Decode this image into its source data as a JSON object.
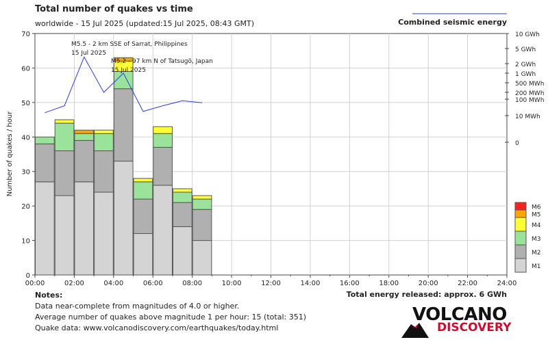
{
  "header": {
    "title": "Total number of quakes vs time",
    "subtitle": "worldwide - 15 Jul 2025 (updated:15 Jul 2025, 08:43 GMT)"
  },
  "legend_energy": "Combined seismic energy",
  "notes": {
    "title": "Notes:",
    "line1": "Data near-complete from magnitudes of 4.0 or higher.",
    "line2": "Average number of quakes above magnitude 1 per hour: 15 (total: 351)",
    "line3": "Quake data: www.volcanodiscovery.com/earthquakes/today.html"
  },
  "total_energy": "Total energy released: approx. 6 GWh",
  "logo": {
    "volcano": "VOLCANO",
    "discovery": "DISCOVERY"
  },
  "colors": {
    "M1": "#d4d4d4",
    "M2": "#b0b0b0",
    "M3": "#9be39b",
    "M4": "#ffff33",
    "M5": "#ffa500",
    "M6": "#ff2020",
    "energy_line": "#2a3ed6"
  },
  "chart_data": {
    "type": "bar",
    "stacked": true,
    "ylabel": "Number of quakes / hour",
    "ylim": [
      0,
      70
    ],
    "yticks": [
      0,
      10,
      20,
      30,
      40,
      50,
      60,
      70
    ],
    "xlim": [
      0,
      24
    ],
    "xticks": [
      "00:00",
      "02:00",
      "04:00",
      "06:00",
      "08:00",
      "10:00",
      "12:00",
      "14:00",
      "16:00",
      "18:00",
      "20:00",
      "22:00",
      "24:00"
    ],
    "grid": true,
    "bin_hours": 1,
    "bins_start": [
      0,
      1,
      2,
      3,
      4,
      5,
      6,
      7,
      8
    ],
    "series": [
      {
        "name": "M1",
        "values": [
          27,
          23,
          27,
          24,
          33,
          12,
          26,
          14,
          10
        ]
      },
      {
        "name": "M2",
        "values": [
          11,
          13,
          12,
          12,
          21,
          10,
          11,
          7,
          9
        ]
      },
      {
        "name": "M3",
        "values": [
          2,
          8,
          2,
          5,
          5,
          5,
          4,
          3,
          3
        ]
      },
      {
        "name": "M4",
        "values": [
          0,
          1,
          0,
          1,
          3,
          1,
          2,
          1,
          1
        ]
      },
      {
        "name": "M5",
        "values": [
          0,
          0,
          1,
          0,
          1,
          0,
          0,
          0,
          0
        ]
      },
      {
        "name": "M6",
        "values": [
          0,
          0,
          0,
          0,
          0,
          0,
          0,
          0,
          0
        ]
      }
    ],
    "legend": [
      "M6",
      "M5",
      "M4",
      "M3",
      "M2",
      "M1"
    ],
    "legend_position": "right",
    "energy_axis": {
      "labels": [
        "10 GWh",
        "5 GWh",
        "2 GWh",
        "1 GWh",
        "500 MWh",
        "200 MWh",
        "100 MWh",
        "10 MWh",
        "0"
      ],
      "values_kwh": [
        10000000,
        5000000,
        2000000,
        1000000,
        500000,
        200000,
        100000,
        10000,
        0
      ]
    },
    "energy_series": {
      "name": "Combined seismic energy",
      "x": [
        0.5,
        1.5,
        2.5,
        3.5,
        4.5,
        5.5,
        6.5,
        7.5,
        8.5
      ],
      "values_kwh": [
        15000,
        40000,
        3000000,
        200000,
        1000000,
        18000,
        40000,
        80000,
        60000
      ]
    },
    "annotations": [
      {
        "line1": "M5.5 - 2 km SSE of Sarrat, Philippines",
        "line2": "15 Jul 2025"
      },
      {
        "line1": "M5.2 - 97 km N of Tatsugō, Japan",
        "line2": "15 Jul 2025"
      }
    ]
  }
}
